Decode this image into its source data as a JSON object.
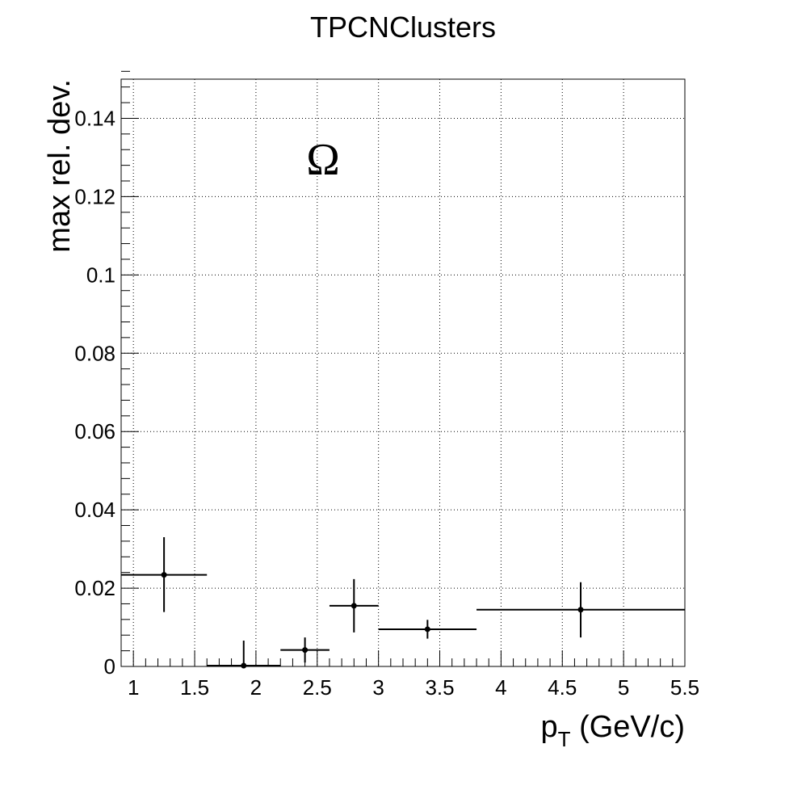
{
  "chart_data": {
    "type": "scatter",
    "title": "TPCNClusters",
    "xlabel_main": "p",
    "xlabel_sub": "T",
    "xlabel_rest": " (GeV/c)",
    "ylabel": "max rel. dev.",
    "annotation": "Ω",
    "xlim": [
      0.9,
      5.5
    ],
    "ylim": [
      0,
      0.15
    ],
    "grid": true,
    "x_ticks": [
      1,
      1.5,
      2,
      2.5,
      3,
      3.5,
      4,
      4.5,
      5,
      5.5
    ],
    "x_tick_labels": [
      "1",
      "1.5",
      "2",
      "2.5",
      "3",
      "3.5",
      "4",
      "4.5",
      "5",
      "5.5"
    ],
    "y_ticks": [
      0,
      0.02,
      0.04,
      0.06,
      0.08,
      0.1,
      0.12,
      0.14
    ],
    "y_tick_labels": [
      "0",
      "0.02",
      "0.04",
      "0.06",
      "0.08",
      "0.1",
      "0.12",
      "0.14"
    ],
    "points": [
      {
        "x": 1.25,
        "xlo": 0.9,
        "xhi": 1.6,
        "y": 0.0234,
        "ylo": 0.0139,
        "yhi": 0.033
      },
      {
        "x": 1.9,
        "xlo": 1.6,
        "xhi": 2.2,
        "y": 0.0002,
        "ylo": 0.0,
        "yhi": 0.0066
      },
      {
        "x": 2.4,
        "xlo": 2.2,
        "xhi": 2.6,
        "y": 0.0042,
        "ylo": 0.001,
        "yhi": 0.0074
      },
      {
        "x": 2.8,
        "xlo": 2.6,
        "xhi": 3.0,
        "y": 0.0155,
        "ylo": 0.0087,
        "yhi": 0.0223
      },
      {
        "x": 3.4,
        "xlo": 3.0,
        "xhi": 3.8,
        "y": 0.0095,
        "ylo": 0.0071,
        "yhi": 0.0119
      },
      {
        "x": 4.65,
        "xlo": 3.8,
        "xhi": 5.5,
        "y": 0.0145,
        "ylo": 0.0074,
        "yhi": 0.0215
      }
    ]
  }
}
